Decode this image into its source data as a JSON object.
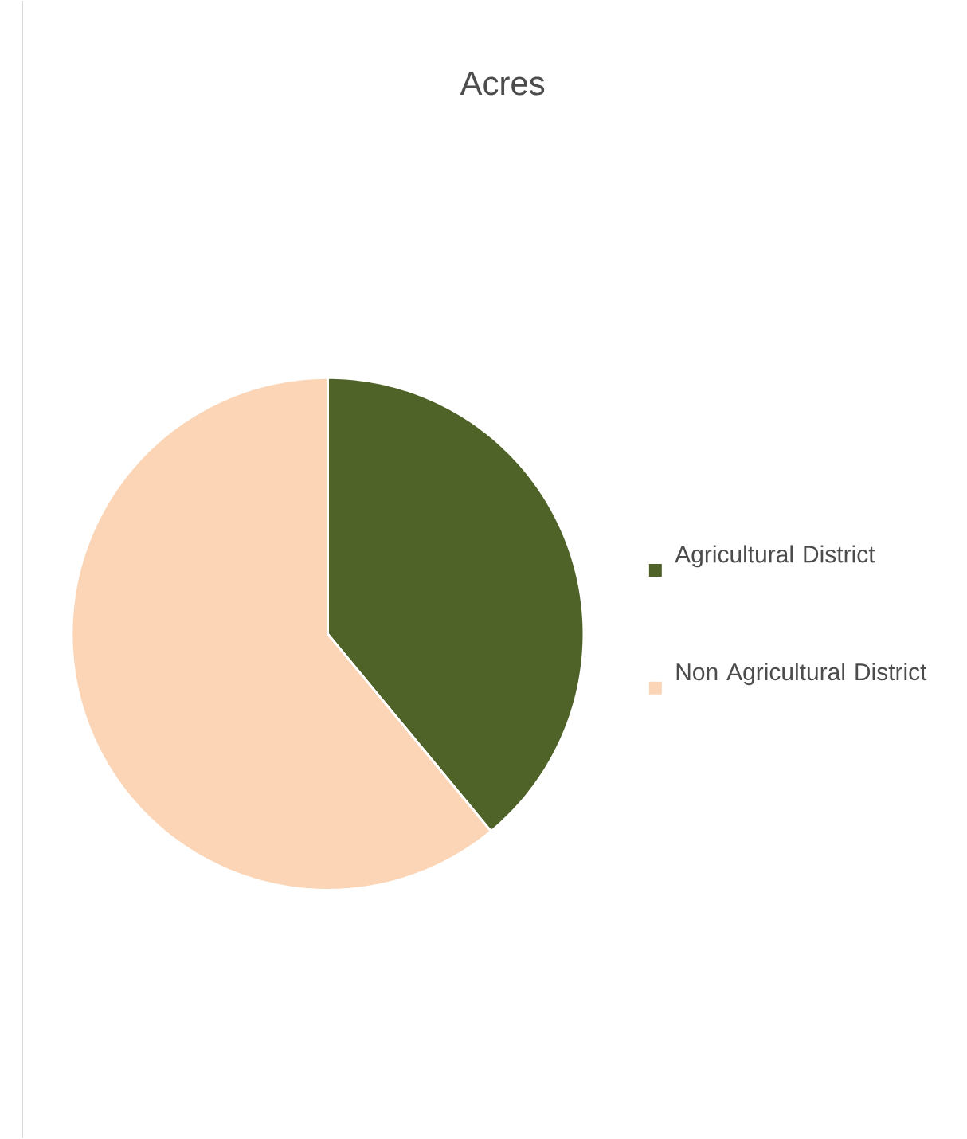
{
  "chart_data": {
    "type": "pie",
    "title": "Acres",
    "categories": [
      "Agricultural District",
      "Non Agricultural District"
    ],
    "values": [
      39,
      61
    ],
    "colors": [
      "#4f6228",
      "#fbd5b5"
    ],
    "legend": "right"
  }
}
